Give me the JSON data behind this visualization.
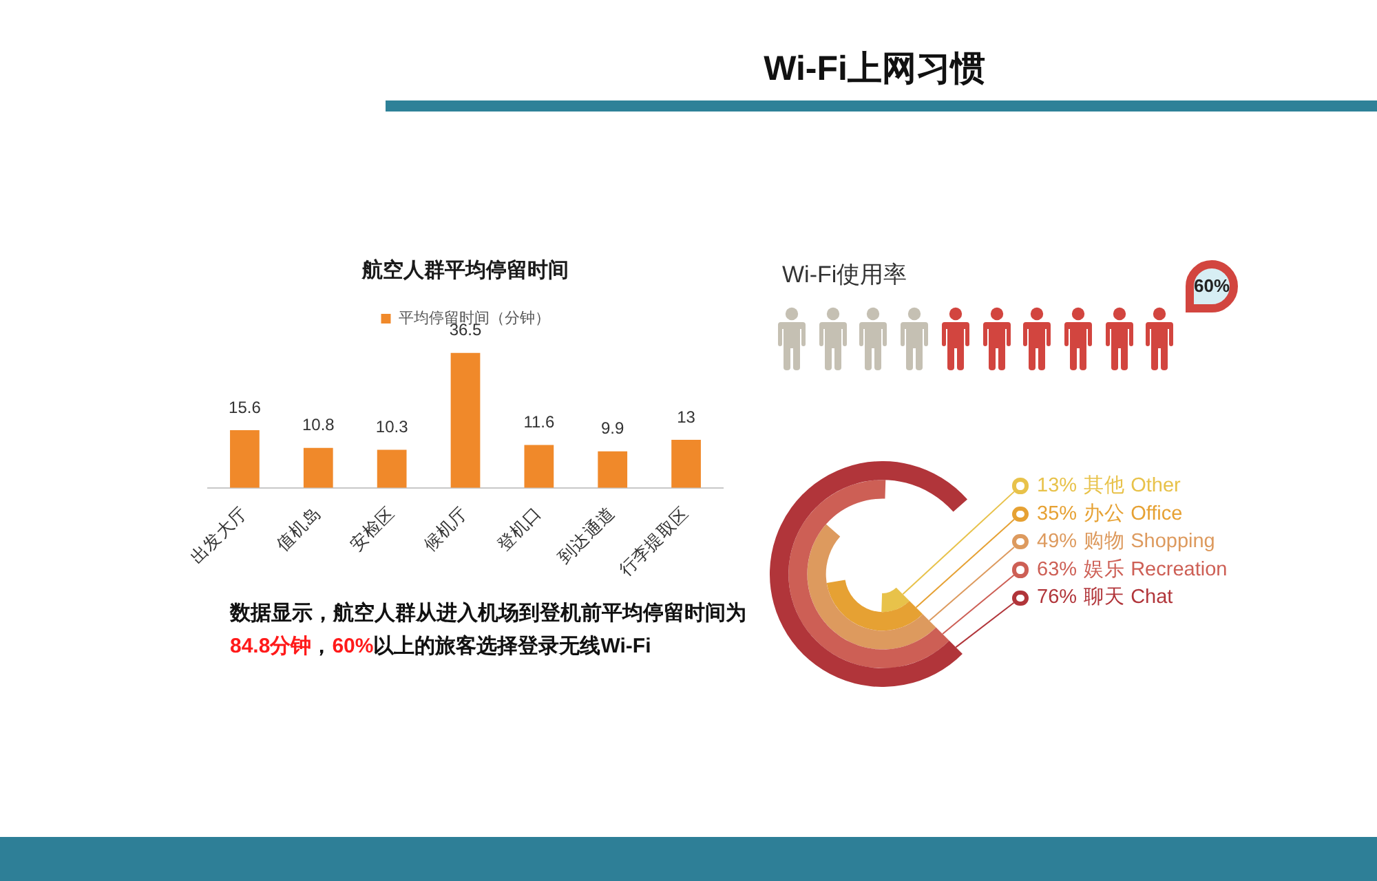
{
  "chart_data": [
    {
      "type": "other",
      "title": "Wi-Fi上网习惯"
    },
    {
      "type": "bar",
      "title": "航空人群平均停留时间",
      "categories": [
        "出发大厅",
        "值机岛",
        "安检区",
        "候机厅",
        "登机口",
        "到达通道",
        "行李提取区"
      ],
      "series": [
        {
          "name": "平均停留时间（分钟）",
          "color": "#f0892a",
          "values": [
            15.6,
            10.8,
            10.3,
            36.5,
            11.6,
            9.9,
            13
          ]
        }
      ],
      "data_labels": true,
      "legend": "top",
      "tick_labels": "x",
      "annotations": [
        "数据显示，航空人群从进入机场到登机前平均停留时间为",
        "84.8分钟",
        "，",
        "60%",
        "以上的旅客选择登录无线Wi-Fi"
      ]
    },
    {
      "type": "other",
      "title": "Wi-Fi使用率",
      "values": [
        60
      ],
      "value_labels": [
        "60%"
      ],
      "color": "#d2453f"
    },
    {
      "type": "other",
      "categories": [
        "其他 Other",
        "办公 Office",
        "购物 Shopping",
        "娱乐 Recreation",
        "聊天 Chat"
      ],
      "values": [
        13,
        35,
        49,
        63,
        76
      ],
      "value_labels": [
        "13%",
        "35%",
        "49%",
        "63%",
        "76%"
      ],
      "colors": [
        "#e8c24a",
        "#e6a133",
        "#dd9a5e",
        "#cd5f55",
        "#b1353a"
      ]
    }
  ]
}
